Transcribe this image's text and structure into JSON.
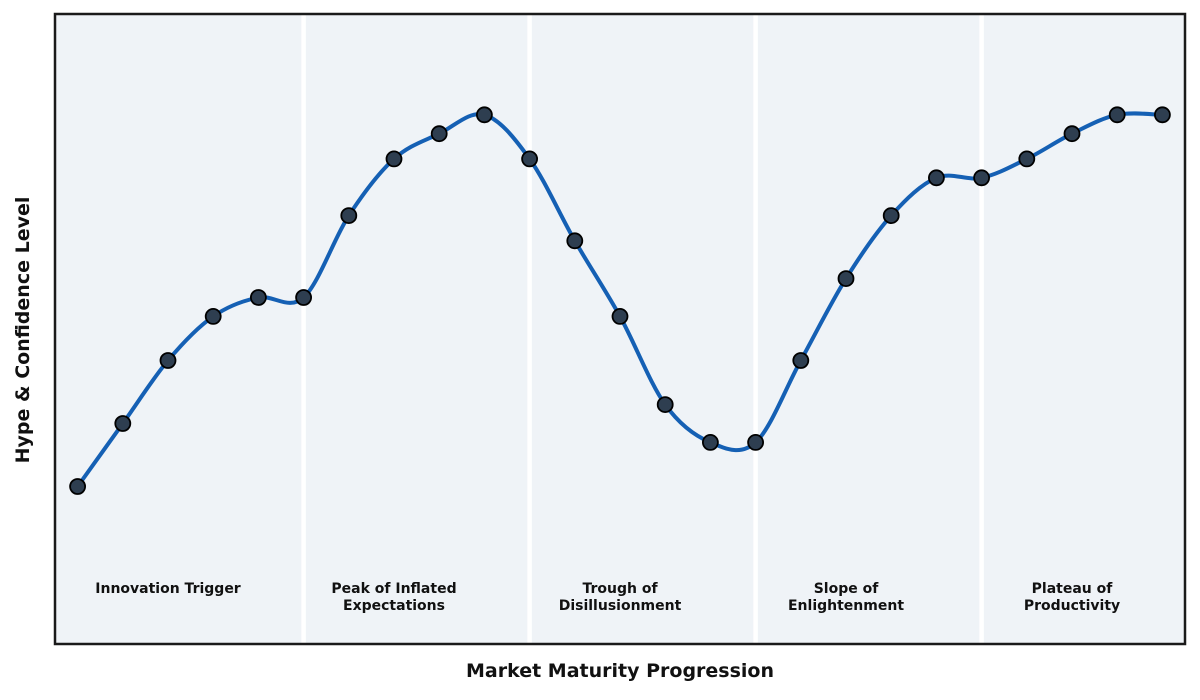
{
  "chart_data": {
    "type": "line",
    "title": "",
    "xlabel": "Market Maturity Progression",
    "ylabel": "Hype & Confidence Level",
    "x": [
      0,
      1,
      2,
      3,
      4,
      5,
      6,
      7,
      8,
      9,
      10,
      11,
      12,
      13,
      14,
      15,
      16,
      17,
      18,
      19,
      20,
      21,
      22,
      23,
      24
    ],
    "values": [
      25,
      35,
      45,
      52,
      55,
      55,
      68,
      77,
      81,
      84,
      77,
      64,
      52,
      38,
      32,
      32,
      45,
      58,
      68,
      74,
      74,
      77,
      81,
      84,
      84
    ],
    "xlim": [
      -0.5,
      24.5
    ],
    "ylim": [
      0,
      100
    ],
    "grid": false,
    "legend_position": "none",
    "line_style": "smooth-spline",
    "marker": "circle",
    "phases": [
      {
        "label": "Innovation Trigger",
        "x_start": -0.5,
        "x_end": 5,
        "label_x": 2
      },
      {
        "label": "Peak of Inflated\nExpectations",
        "x_start": 5,
        "x_end": 10,
        "label_x": 7
      },
      {
        "label": "Trough of\nDisillusionment",
        "x_start": 10,
        "x_end": 15,
        "label_x": 12
      },
      {
        "label": "Slope of\nEnlightenment",
        "x_start": 15,
        "x_end": 20,
        "label_x": 17
      },
      {
        "label": "Plateau of\nProductivity",
        "x_start": 20,
        "x_end": 24.5,
        "label_x": 22
      }
    ],
    "colors": {
      "line": "#1560b4",
      "marker_fill": "#2e3e50",
      "marker_edge": "#000000",
      "band_fill": "#eff3f7",
      "phase_divider": "#ffffff",
      "axis_border": "#1a1a1a",
      "label_text": "#111111",
      "figure_background": "#ffffff"
    }
  }
}
